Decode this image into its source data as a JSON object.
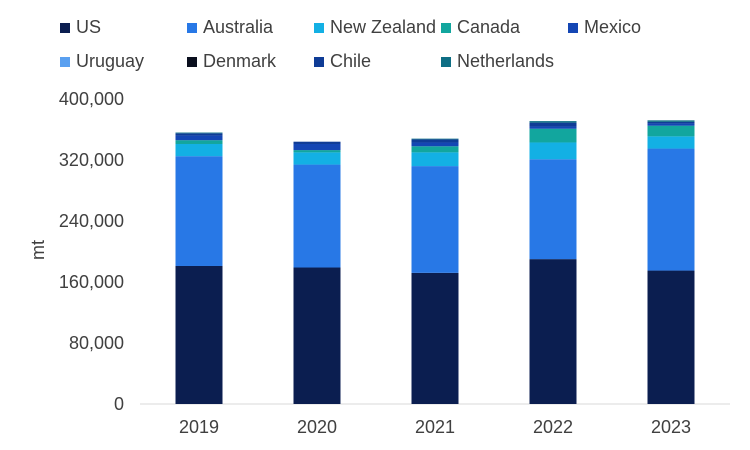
{
  "chart_data": {
    "type": "bar",
    "stacked": true,
    "categories": [
      "2019",
      "2020",
      "2021",
      "2022",
      "2023"
    ],
    "ylabel": "mt",
    "ylim": [
      0,
      400000
    ],
    "yticks": [
      0,
      80000,
      160000,
      240000,
      320000,
      400000
    ],
    "ytick_labels": [
      "0",
      "80,000",
      "160,000",
      "240,000",
      "320,000",
      "400,000"
    ],
    "grid": false,
    "legend_position": "top",
    "series": [
      {
        "name": "US",
        "color": "#0b1e50",
        "values": [
          181000,
          179000,
          172000,
          190000,
          175000
        ]
      },
      {
        "name": "Australia",
        "color": "#2878e6",
        "values": [
          144000,
          135000,
          140000,
          131000,
          160000
        ]
      },
      {
        "name": "New Zealand",
        "color": "#13b0e4",
        "values": [
          16000,
          16000,
          18000,
          22000,
          16000
        ]
      },
      {
        "name": "Canada",
        "color": "#12a69e",
        "values": [
          5000,
          3000,
          8000,
          18000,
          14000
        ]
      },
      {
        "name": "Mexico",
        "color": "#1446b4",
        "values": [
          6000,
          8000,
          5000,
          3000,
          3000
        ]
      },
      {
        "name": "Uruguay",
        "color": "#5aa0f0",
        "values": [
          0,
          0,
          0,
          0,
          0
        ]
      },
      {
        "name": "Denmark",
        "color": "#0a0f1e",
        "values": [
          0,
          0,
          0,
          0,
          0
        ]
      },
      {
        "name": "Chile",
        "color": "#0f3c96",
        "values": [
          3000,
          3000,
          4000,
          5000,
          2000
        ]
      },
      {
        "name": "Netherlands",
        "color": "#0e6e84",
        "values": [
          1000,
          0,
          1000,
          2000,
          2000
        ]
      }
    ]
  }
}
